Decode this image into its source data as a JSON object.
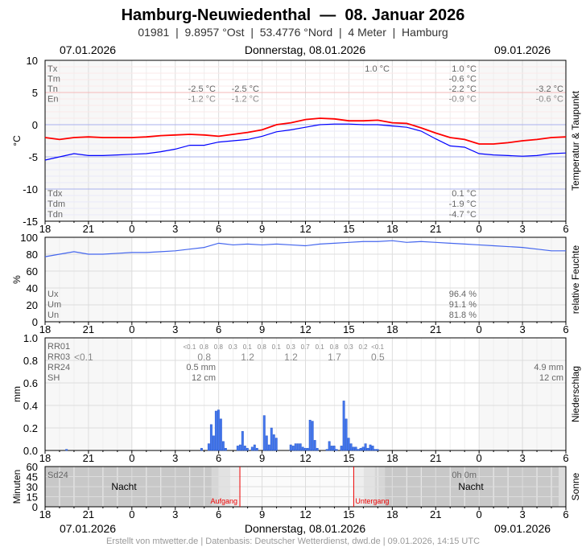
{
  "header": {
    "title": "Hamburg-Neuwiedenthal  —  08. Januar 2026",
    "subtitle": "01981  |  9.8957 °Ost  |  53.4776 °Nord  |  4 Meter  |  Hamburg",
    "date_left": "07.01.2026",
    "date_center": "Donnerstag, 08.01.2026",
    "date_right": "09.01.2026"
  },
  "footer": "Erstellt von mtwetter.de | Datenbasis: Deutscher Wetterdienst, dwd.de | 09.01.2026, 14:15 UTC",
  "x_ticks": [
    "18",
    "21",
    "0",
    "3",
    "6",
    "9",
    "12",
    "15",
    "18",
    "21",
    "0",
    "3",
    "6"
  ],
  "chart_data": [
    {
      "type": "line",
      "name": "temperature",
      "ylabel": "°C",
      "right_label": "Temperatur & Taupunkt",
      "ylim": [
        -15,
        10
      ],
      "yticks": [
        "10",
        "5",
        "0",
        "-5",
        "-10",
        "-15"
      ],
      "x_start": "2026-01-07T18:00",
      "x_end": "2026-01-09T06:00",
      "x_step_hours": 1,
      "series": [
        {
          "color": "#ff0000",
          "values": [
            -2.0,
            -2.3,
            -2.0,
            -1.9,
            -2.0,
            -2.0,
            -2.0,
            -1.9,
            -1.7,
            -1.6,
            -1.5,
            -1.6,
            -1.8,
            -1.5,
            -1.2,
            -0.8,
            0.0,
            0.3,
            0.8,
            1.0,
            0.9,
            0.6,
            0.6,
            0.7,
            0.3,
            0.2,
            -0.5,
            -1.3,
            -2.0,
            -2.3,
            -3.0,
            -3.0,
            -2.8,
            -2.5,
            -2.3,
            -2.0,
            -1.9
          ]
        },
        {
          "color": "#0000ff",
          "values": [
            -5.5,
            -5.0,
            -4.5,
            -4.8,
            -4.8,
            -4.7,
            -4.6,
            -4.5,
            -4.2,
            -3.8,
            -3.2,
            -3.2,
            -2.7,
            -2.5,
            -2.3,
            -1.8,
            -1.1,
            -0.8,
            -0.4,
            0.0,
            0.1,
            0.1,
            0.0,
            0.0,
            -0.2,
            -0.4,
            -1.0,
            -2.2,
            -3.3,
            -3.5,
            -4.5,
            -4.7,
            -4.8,
            -4.9,
            -4.8,
            -4.5,
            -4.4
          ]
        }
      ],
      "stats_top": {
        "labels": [
          "Tx",
          "Tm",
          "Tn",
          "En"
        ],
        "col1": [
          "",
          "",
          "-2.5 °C",
          "-1.2 °C"
        ],
        "col2": [
          "",
          "",
          "-2.5 °C",
          "-1.2 °C"
        ],
        "col3": [
          "1.0 °C",
          "",
          "",
          ""
        ],
        "col4": [
          "1.0 °C",
          "-0.6 °C",
          "-2.2 °C",
          "-0.9 °C"
        ],
        "col5": [
          "",
          "",
          "-3.2 °C",
          "-0.6 °C"
        ]
      },
      "stats_bottom": {
        "labels": [
          "Tdx",
          "Tdm",
          "Tdn"
        ],
        "values": [
          "0.1 °C",
          "-1.9 °C",
          "-4.7 °C"
        ]
      }
    },
    {
      "type": "line",
      "name": "humidity",
      "ylabel": "%",
      "right_label": "relative Feuchte",
      "ylim": [
        0,
        100
      ],
      "yticks": [
        "100",
        "80",
        "60",
        "40",
        "20",
        "0"
      ],
      "x_start": "2026-01-07T18:00",
      "x_step_hours": 1,
      "color": "#4466ee",
      "values": [
        77,
        80,
        83,
        80,
        80,
        81,
        82,
        82,
        83,
        84,
        86,
        88,
        93,
        91,
        92,
        91,
        92,
        91,
        90,
        92,
        93,
        94,
        95,
        95,
        96,
        94,
        95,
        94,
        93,
        92,
        91,
        90,
        89,
        88,
        86,
        84,
        84
      ],
      "stats": {
        "labels": [
          "Ux",
          "Um",
          "Un"
        ],
        "values": [
          "96.4 %",
          "91.1 %",
          "81.8 %"
        ]
      }
    },
    {
      "type": "bar",
      "name": "precipitation",
      "ylabel": "mm",
      "right_label": "Niederschlag",
      "ylim": [
        0,
        1.0
      ],
      "yticks": [
        "1.0",
        "0.8",
        "0.6",
        "0.4",
        "0.2",
        "0.0"
      ],
      "color": "#4477ee",
      "bar_minutes": 10,
      "bars": [
        [
          "2026-01-07T19:30",
          0.01
        ],
        [
          "2026-01-08T04:50",
          0.02
        ],
        [
          "2026-01-08T05:20",
          0.06
        ],
        [
          "2026-01-08T05:30",
          0.23
        ],
        [
          "2026-01-08T05:40",
          0.13
        ],
        [
          "2026-01-08T05:50",
          0.35
        ],
        [
          "2026-01-08T06:00",
          0.36
        ],
        [
          "2026-01-08T06:10",
          0.28
        ],
        [
          "2026-01-08T06:20",
          0.08
        ],
        [
          "2026-01-08T06:30",
          0.02
        ],
        [
          "2026-01-08T07:20",
          0.04
        ],
        [
          "2026-01-08T07:30",
          0.05
        ],
        [
          "2026-01-08T07:40",
          0.17
        ],
        [
          "2026-01-08T07:50",
          0.04
        ],
        [
          "2026-01-08T08:00",
          0.02
        ],
        [
          "2026-01-08T08:20",
          0.03
        ],
        [
          "2026-01-08T08:30",
          0.05
        ],
        [
          "2026-01-08T08:40",
          0.02
        ],
        [
          "2026-01-08T09:10",
          0.31
        ],
        [
          "2026-01-08T09:20",
          0.13
        ],
        [
          "2026-01-08T09:30",
          0.05
        ],
        [
          "2026-01-08T09:40",
          0.2
        ],
        [
          "2026-01-08T09:50",
          0.14
        ],
        [
          "2026-01-08T10:00",
          0.11
        ],
        [
          "2026-01-08T11:00",
          0.05
        ],
        [
          "2026-01-08T11:10",
          0.04
        ],
        [
          "2026-01-08T11:20",
          0.06
        ],
        [
          "2026-01-08T11:30",
          0.06
        ],
        [
          "2026-01-08T11:40",
          0.06
        ],
        [
          "2026-01-08T11:50",
          0.03
        ],
        [
          "2026-01-08T12:00",
          0.02
        ],
        [
          "2026-01-08T12:10",
          0.02
        ],
        [
          "2026-01-08T12:20",
          0.27
        ],
        [
          "2026-01-08T12:30",
          0.26
        ],
        [
          "2026-01-08T12:40",
          0.09
        ],
        [
          "2026-01-08T12:50",
          0.02
        ],
        [
          "2026-01-08T13:30",
          0.01
        ],
        [
          "2026-01-08T13:40",
          0.08
        ],
        [
          "2026-01-08T13:50",
          0.04
        ],
        [
          "2026-01-08T14:00",
          0.04
        ],
        [
          "2026-01-08T14:10",
          0.01
        ],
        [
          "2026-01-08T14:30",
          0.04
        ],
        [
          "2026-01-08T14:40",
          0.44
        ],
        [
          "2026-01-08T14:50",
          0.28
        ],
        [
          "2026-01-08T15:00",
          0.11
        ],
        [
          "2026-01-08T15:10",
          0.06
        ],
        [
          "2026-01-08T15:20",
          0.03
        ],
        [
          "2026-01-08T15:30",
          0.03
        ],
        [
          "2026-01-08T15:40",
          0.01
        ],
        [
          "2026-01-08T15:50",
          0.02
        ],
        [
          "2026-01-08T16:00",
          0.03
        ],
        [
          "2026-01-08T16:10",
          0.06
        ],
        [
          "2026-01-08T16:20",
          0.02
        ],
        [
          "2026-01-08T16:30",
          0.05
        ],
        [
          "2026-01-08T16:40",
          0.04
        ],
        [
          "2026-01-08T16:50",
          0.01
        ],
        [
          "2026-01-08T17:00",
          0.01
        ]
      ],
      "labels": [
        "RR01",
        "RR03",
        "RR24",
        "SH"
      ],
      "rr01": [
        "<0.1",
        "0.8",
        "0.8",
        "0.3",
        "0.1",
        "0.8",
        "0.1",
        "0.3",
        "0.7",
        "0.1",
        "0.8",
        "0.3",
        "0.2",
        "<0.1"
      ],
      "rr03": [
        "<0.1",
        "0.8",
        "1.2",
        "1.2",
        "1.7",
        "0.5"
      ],
      "rr24_left": "0.5 mm",
      "sh_left": "12 cm",
      "rr24_right": "4.9 mm",
      "sh_right": "12 cm"
    },
    {
      "type": "area",
      "name": "sunshine",
      "ylabel": "Minuten",
      "right_label": "Sonne",
      "ylim": [
        0,
        60
      ],
      "yticks": [
        "60",
        "45",
        "30",
        "15",
        "0"
      ],
      "label": "Sd24",
      "value": "0h 0m",
      "night_label": "Nacht",
      "sunrise_label": "Aufgang",
      "sunset_label": "Untergang",
      "sunrise": "2026-01-08T07:28",
      "sunset": "2026-01-08T15:20"
    }
  ]
}
